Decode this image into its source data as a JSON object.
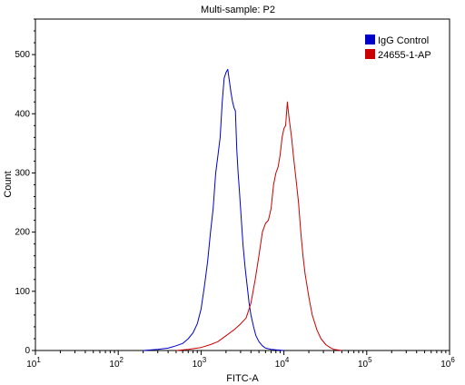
{
  "chart_data": {
    "type": "line",
    "title": "Multi-sample: P2",
    "xlabel": "FITC-A",
    "ylabel": "Count",
    "xscale": "log",
    "xlim": [
      10,
      1000000
    ],
    "ylim": [
      0,
      560
    ],
    "x_ticks": [
      10,
      100,
      1000,
      10000,
      100000,
      1000000
    ],
    "x_tick_labels": [
      {
        "base": "10",
        "exp": "1"
      },
      {
        "base": "10",
        "exp": "2"
      },
      {
        "base": "10",
        "exp": "3"
      },
      {
        "base": "10",
        "exp": "4"
      },
      {
        "base": "10",
        "exp": "5"
      },
      {
        "base": "10",
        "exp": "6"
      }
    ],
    "y_ticks": [
      0,
      100,
      200,
      300,
      400,
      500
    ],
    "y_tick_labels": [
      "0",
      "100",
      "200",
      "300",
      "400",
      "500"
    ],
    "grid": false,
    "legend_position": "top-right",
    "series": [
      {
        "name": "IgG Control",
        "color": "#0000cc",
        "x": [
          200,
          300,
          400,
          500,
          600,
          700,
          800,
          900,
          1000,
          1100,
          1200,
          1300,
          1400,
          1500,
          1600,
          1700,
          1800,
          1900,
          2000,
          2100,
          2200,
          2300,
          2400,
          2500,
          2600,
          2700,
          2800,
          2900,
          3000,
          3200,
          3400,
          3600,
          3800,
          4000,
          4300,
          4600,
          5000,
          5500,
          6000,
          7000,
          8000,
          10000
        ],
        "y": [
          0,
          2,
          4,
          8,
          12,
          20,
          30,
          45,
          70,
          110,
          150,
          200,
          240,
          300,
          330,
          360,
          420,
          460,
          470,
          475,
          455,
          435,
          420,
          410,
          405,
          340,
          300,
          270,
          240,
          180,
          140,
          110,
          80,
          60,
          40,
          25,
          15,
          8,
          4,
          2,
          1,
          0
        ]
      },
      {
        "name": "24655-1-AP",
        "color": "#cc0000",
        "x": [
          500,
          700,
          1000,
          1300,
          1600,
          2000,
          2500,
          3000,
          3500,
          4000,
          4500,
          5000,
          5500,
          6000,
          6500,
          7000,
          7500,
          8000,
          8500,
          9000,
          9500,
          10000,
          10500,
          11000,
          11500,
          12000,
          12500,
          13000,
          14000,
          15000,
          16000,
          17000,
          18000,
          20000,
          22000,
          25000,
          28000,
          32000,
          36000,
          40000,
          50000
        ],
        "y": [
          0,
          2,
          5,
          10,
          15,
          25,
          35,
          45,
          55,
          80,
          120,
          160,
          200,
          215,
          220,
          240,
          280,
          300,
          310,
          330,
          360,
          375,
          380,
          420,
          395,
          375,
          355,
          330,
          290,
          250,
          200,
          160,
          130,
          90,
          60,
          35,
          20,
          10,
          5,
          2,
          0
        ]
      }
    ]
  }
}
